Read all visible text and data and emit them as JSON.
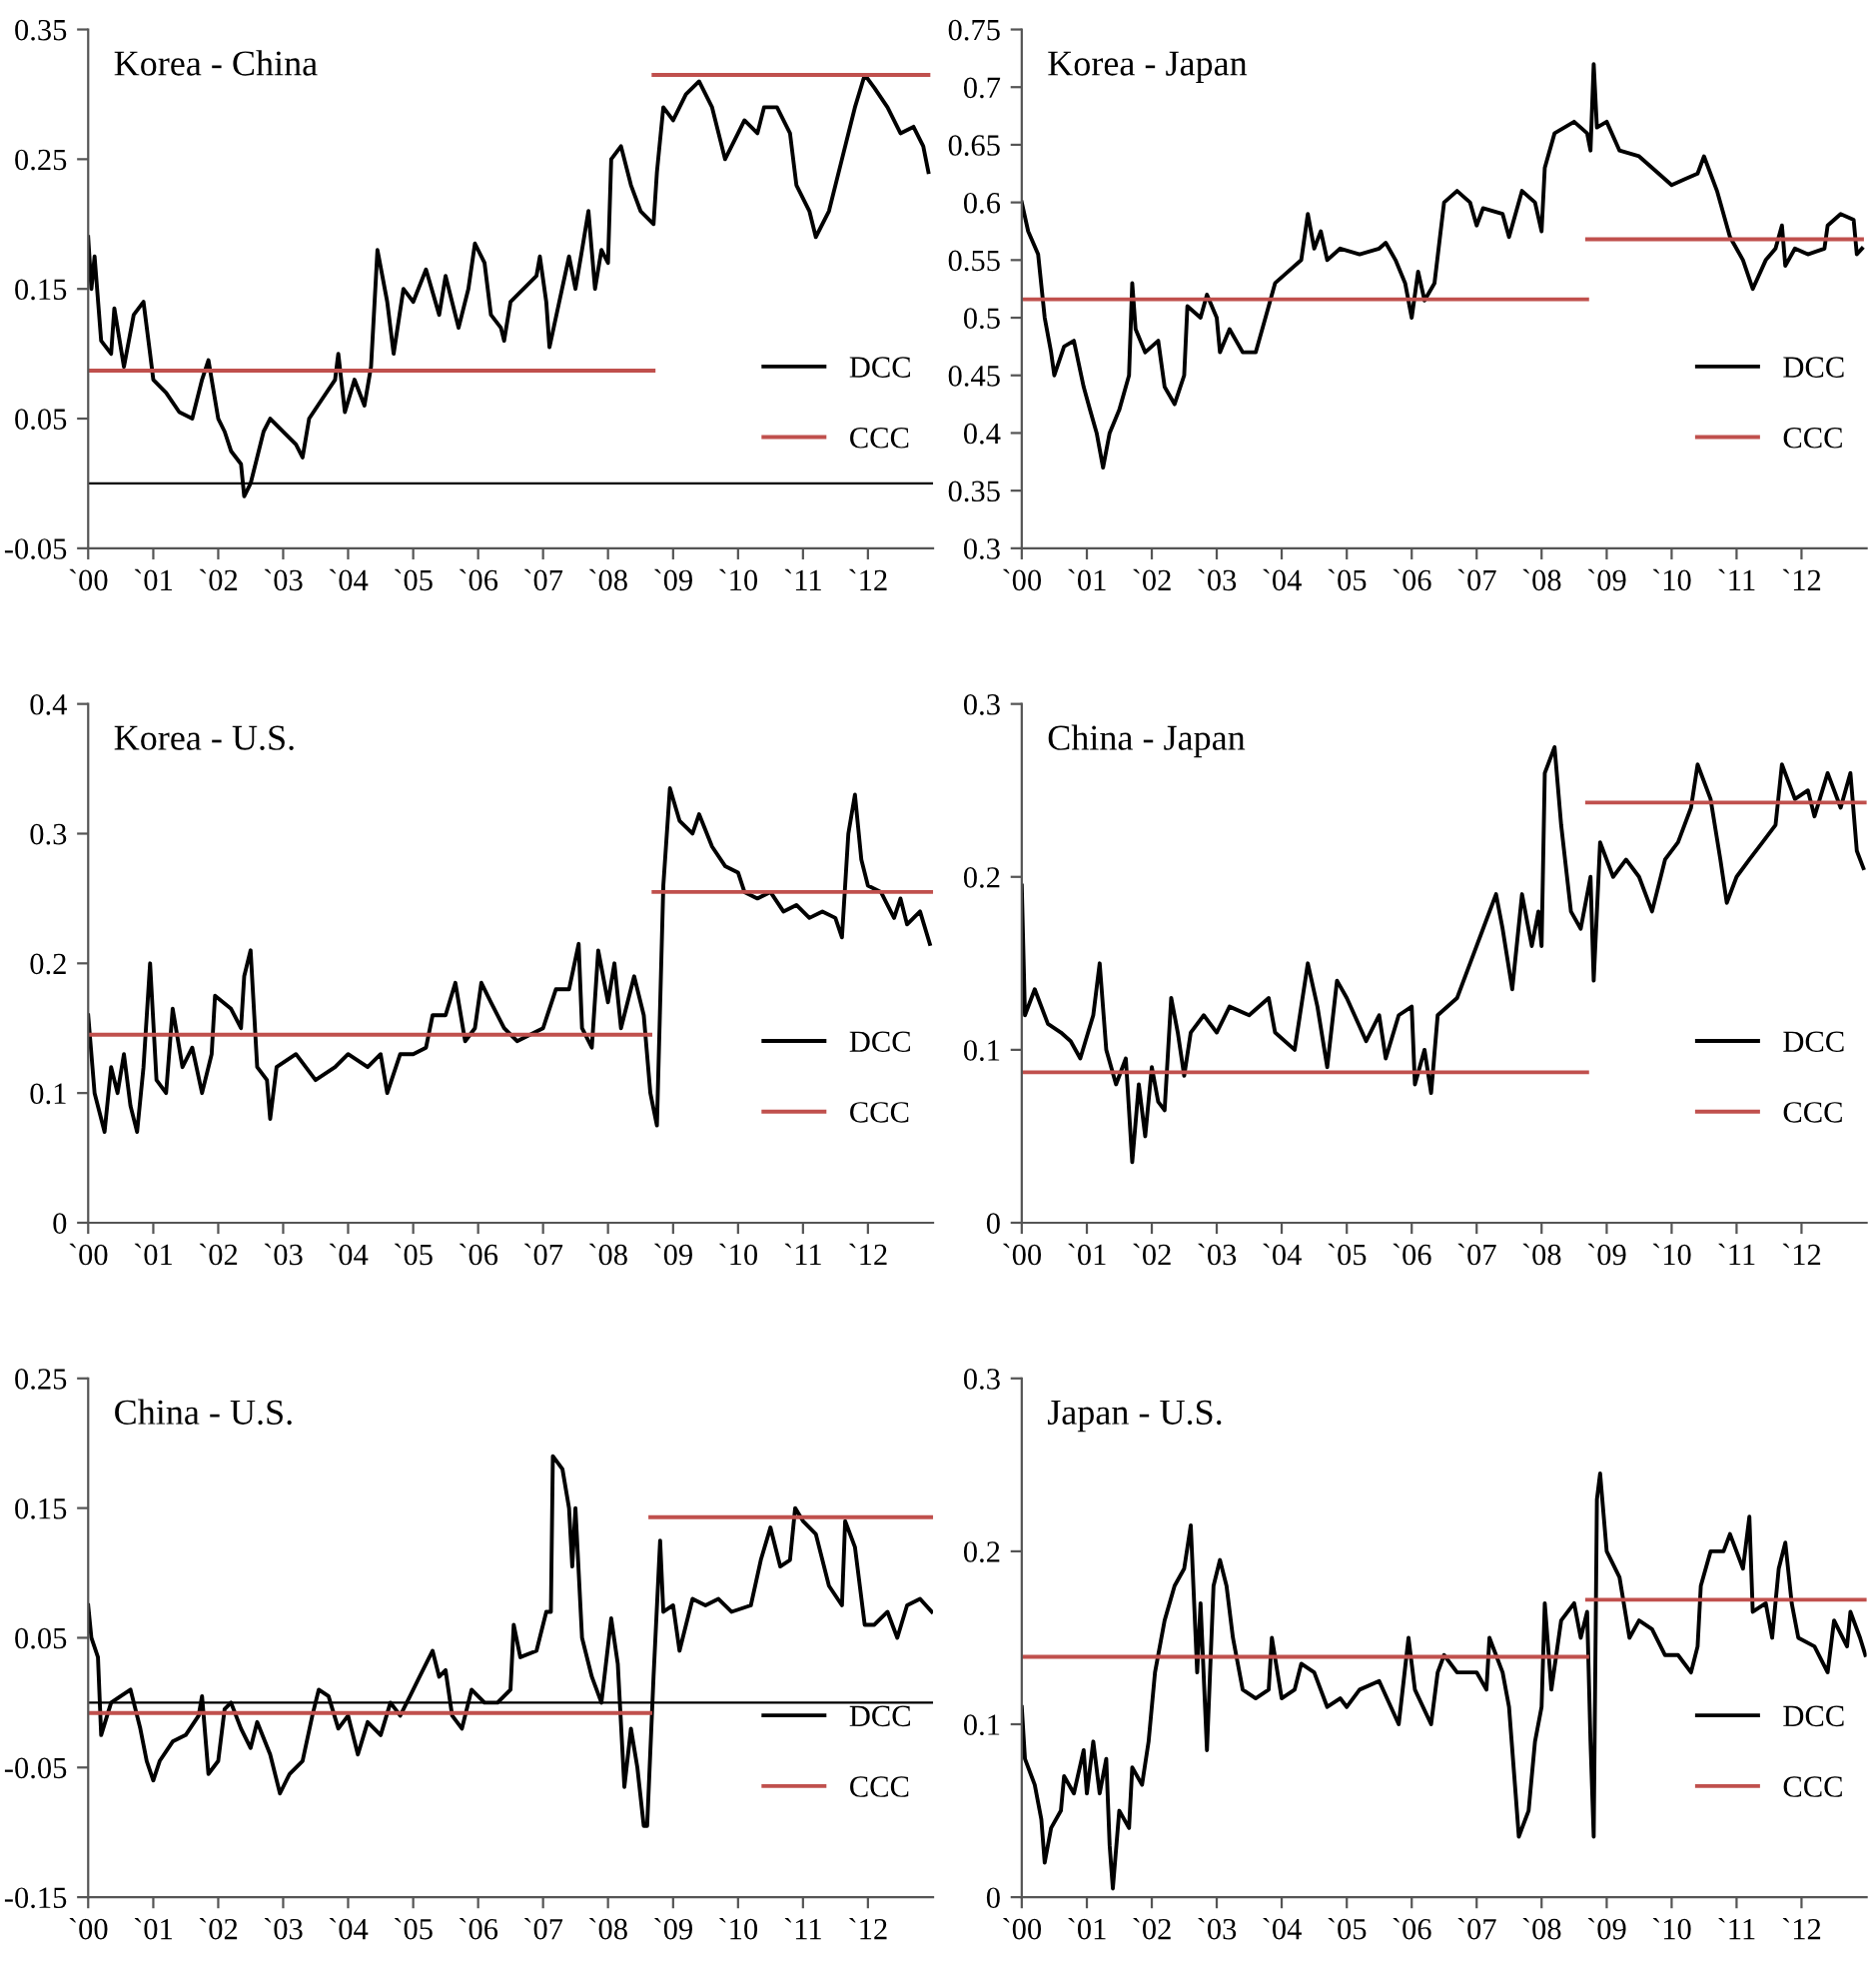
{
  "chart_data": [
    {
      "type": "line",
      "title": "Korea - China",
      "xlim": [
        "2000",
        "2013"
      ],
      "ylim": [
        -0.05,
        0.35
      ],
      "yticks": [
        -0.05,
        0.05,
        0.15,
        0.25,
        0.35
      ],
      "xticks": [
        {
          "value": "2000",
          "label": "`00"
        },
        {
          "value": "2001",
          "label": "`01"
        },
        {
          "value": "2002",
          "label": "`02"
        },
        {
          "value": "2003",
          "label": "`03"
        },
        {
          "value": "2004",
          "label": "`04"
        },
        {
          "value": "2005",
          "label": "`05"
        },
        {
          "value": "2006",
          "label": "`06"
        },
        {
          "value": "2007",
          "label": "`07"
        },
        {
          "value": "2008",
          "label": "`08"
        },
        {
          "value": "2009",
          "label": "`09"
        },
        {
          "value": "2010",
          "label": "`10"
        },
        {
          "value": "2011",
          "label": "`11"
        },
        {
          "value": "2012",
          "label": "`12"
        }
      ],
      "legend": "bottom right",
      "ref_lines": [
        {
          "axis": "y",
          "value": 0,
          "color": "#000000"
        }
      ],
      "series": [
        {
          "name": "DCC",
          "color": "#000000",
          "x": [
            "2000-01-01",
            "2000-01-19",
            "2000-02-06",
            "2000-03-14",
            "2000-05-09",
            "2000-05-27",
            "2000-07-20",
            "2000-09-13",
            "2000-11-07",
            "2000-12-14",
            "2001-01-01",
            "2001-03-14",
            "2001-05-27",
            "2001-08-08",
            "2001-10-02",
            "2001-11-07",
            "2002-01-01",
            "2002-02-06",
            "2002-03-14",
            "2002-05-09",
            "2002-05-27",
            "2002-07-02",
            "2002-09-13",
            "2002-10-20",
            "2003-01-01",
            "2003-03-14",
            "2003-04-20",
            "2003-05-27",
            "2003-08-08",
            "2003-10-20",
            "2003-11-07",
            "2003-12-14",
            "2004-02-06",
            "2004-04-02",
            "2004-05-09",
            "2004-06-14",
            "2004-08-08",
            "2004-09-13",
            "2004-11-07",
            "2005-01-01",
            "2005-03-14",
            "2005-05-27",
            "2005-07-02",
            "2005-09-13",
            "2005-11-07",
            "2005-12-14",
            "2006-02-06",
            "2006-03-14",
            "2006-05-09",
            "2006-05-27",
            "2006-07-02",
            "2006-09-13",
            "2006-11-25",
            "2006-12-14",
            "2007-01-19",
            "2007-02-06",
            "2007-04-02",
            "2007-05-27",
            "2007-07-02",
            "2007-08-08",
            "2007-09-13",
            "2007-10-20",
            "2007-11-25",
            "2008-01-01",
            "2008-01-19",
            "2008-03-14",
            "2008-05-09",
            "2008-07-02",
            "2008-09-13",
            "2008-10-02",
            "2008-11-07",
            "2009-01-01",
            "2009-03-14",
            "2009-05-27",
            "2009-08-08",
            "2009-10-20",
            "2010-01-01",
            "2010-02-06",
            "2010-04-20",
            "2010-05-27",
            "2010-08-08",
            "2010-10-20",
            "2010-11-25",
            "2011-02-06",
            "2011-03-14",
            "2011-05-27",
            "2011-08-08",
            "2011-10-20",
            "2011-12-14",
            "2012-02-06",
            "2012-04-20",
            "2012-07-02",
            "2012-09-13",
            "2012-11-07",
            "2012-12-06"
          ],
          "values": [
            0.19,
            0.15,
            0.175,
            0.11,
            0.1,
            0.135,
            0.09,
            0.13,
            0.14,
            0.1,
            0.08,
            0.07,
            0.055,
            0.05,
            0.08,
            0.095,
            0.05,
            0.04,
            0.025,
            0.015,
            -0.01,
            0.0,
            0.04,
            0.05,
            0.04,
            0.03,
            0.02,
            0.05,
            0.065,
            0.08,
            0.1,
            0.055,
            0.08,
            0.06,
            0.09,
            0.18,
            0.14,
            0.1,
            0.15,
            0.14,
            0.165,
            0.13,
            0.16,
            0.12,
            0.15,
            0.185,
            0.17,
            0.13,
            0.12,
            0.11,
            0.14,
            0.15,
            0.16,
            0.175,
            0.14,
            0.105,
            0.14,
            0.175,
            0.15,
            0.18,
            0.21,
            0.15,
            0.18,
            0.17,
            0.25,
            0.26,
            0.23,
            0.21,
            0.2,
            0.24,
            0.29,
            0.28,
            0.3,
            0.31,
            0.29,
            0.25,
            0.27,
            0.28,
            0.27,
            0.29,
            0.29,
            0.27,
            0.23,
            0.21,
            0.19,
            0.21,
            0.25,
            0.29,
            0.315,
            0.305,
            0.29,
            0.27,
            0.275,
            0.26,
            0.24
          ]
        },
        {
          "name": "CCC",
          "color": "#c0504d",
          "x": [
            "2000-01-01",
            "2008-09-13"
          ],
          "values": [
            0.087,
            0.087
          ]
        },
        {
          "color": "#c0504d",
          "x": [
            "2008-09-13",
            "2012-12-06"
          ],
          "values": [
            0.315,
            0.315
          ]
        }
      ]
    },
    {
      "type": "line",
      "title": "Korea - Japan",
      "xlim": [
        "2000",
        "2013"
      ],
      "ylim": [
        0.3,
        0.75
      ],
      "yticks": [
        0.3,
        0.35,
        0.4,
        0.45,
        0.5,
        0.55,
        0.6,
        0.65,
        0.7,
        0.75
      ],
      "xticks": [
        {
          "value": "2000",
          "label": "`00"
        },
        {
          "value": "2001",
          "label": "`01"
        },
        {
          "value": "2002",
          "label": "`02"
        },
        {
          "value": "2003",
          "label": "`03"
        },
        {
          "value": "2004",
          "label": "`04"
        },
        {
          "value": "2005",
          "label": "`05"
        },
        {
          "value": "2006",
          "label": "`06"
        },
        {
          "value": "2007",
          "label": "`07"
        },
        {
          "value": "2008",
          "label": "`08"
        },
        {
          "value": "2009",
          "label": "`09"
        },
        {
          "value": "2010",
          "label": "`10"
        },
        {
          "value": "2011",
          "label": "`11"
        },
        {
          "value": "2012",
          "label": "`12"
        }
      ],
      "legend": "bottom right",
      "series": [
        {
          "name": "DCC",
          "color": "#000000",
          "x": [
            "2000-01-01",
            "2000-02-06",
            "2000-04-02",
            "2000-05-09",
            "2000-06-14",
            "2000-07-02",
            "2000-08-26",
            "2000-10-20",
            "2000-12-14",
            "2001-01-19",
            "2001-02-25",
            "2001-04-02",
            "2001-05-09",
            "2001-07-02",
            "2001-08-26",
            "2001-09-13",
            "2001-10-02",
            "2001-11-25",
            "2002-02-06",
            "2002-03-14",
            "2002-05-09",
            "2002-07-02",
            "2002-07-20",
            "2002-10-02",
            "2002-11-07",
            "2003-01-01",
            "2003-01-19",
            "2003-03-14",
            "2003-05-27",
            "2003-08-08",
            "2003-10-02",
            "2003-11-25",
            "2004-02-06",
            "2004-04-20",
            "2004-05-27",
            "2004-07-02",
            "2004-08-08",
            "2004-09-13",
            "2004-11-25",
            "2005-03-14",
            "2005-07-02",
            "2005-08-08",
            "2005-10-02",
            "2005-11-25",
            "2006-01-01",
            "2006-02-06",
            "2006-03-14",
            "2006-05-09",
            "2006-07-02",
            "2006-09-13",
            "2006-11-25",
            "2007-01-01",
            "2007-02-06",
            "2007-05-27",
            "2007-07-02",
            "2007-09-13",
            "2007-11-25",
            "2008-01-01",
            "2008-01-19",
            "2008-03-14",
            "2008-07-02",
            "2008-09-13",
            "2008-10-02",
            "2008-10-20",
            "2008-11-07",
            "2009-01-01",
            "2009-03-14",
            "2009-07-02",
            "2009-10-20",
            "2010-01-01",
            "2010-03-14",
            "2010-05-27",
            "2010-07-02",
            "2010-09-13",
            "2010-11-25",
            "2011-02-06",
            "2011-04-02",
            "2011-06-14",
            "2011-08-08",
            "2011-09-13",
            "2011-10-02",
            "2011-11-25",
            "2012-02-06",
            "2012-05-09",
            "2012-05-27",
            "2012-08-08",
            "2012-10-20",
            "2012-11-07",
            "2012-12-06"
          ],
          "values": [
            0.6,
            0.575,
            0.555,
            0.5,
            0.47,
            0.45,
            0.475,
            0.48,
            0.44,
            0.42,
            0.4,
            0.37,
            0.4,
            0.42,
            0.45,
            0.53,
            0.49,
            0.47,
            0.48,
            0.44,
            0.425,
            0.45,
            0.51,
            0.5,
            0.52,
            0.5,
            0.47,
            0.49,
            0.47,
            0.47,
            0.5,
            0.53,
            0.54,
            0.55,
            0.59,
            0.56,
            0.575,
            0.55,
            0.56,
            0.555,
            0.56,
            0.565,
            0.55,
            0.53,
            0.5,
            0.54,
            0.515,
            0.53,
            0.6,
            0.61,
            0.6,
            0.58,
            0.595,
            0.59,
            0.57,
            0.61,
            0.6,
            0.575,
            0.63,
            0.66,
            0.67,
            0.66,
            0.645,
            0.72,
            0.665,
            0.67,
            0.645,
            0.64,
            0.625,
            0.615,
            0.62,
            0.625,
            0.64,
            0.61,
            0.57,
            0.55,
            0.525,
            0.55,
            0.56,
            0.58,
            0.545,
            0.56,
            0.555,
            0.56,
            0.58,
            0.59,
            0.585,
            0.555,
            0.56
          ]
        },
        {
          "name": "CCC",
          "color": "#c0504d",
          "x": [
            "2000-01-01",
            "2008-09-13"
          ],
          "values": [
            0.516,
            0.516
          ]
        },
        {
          "color": "#c0504d",
          "x": [
            "2008-09-13",
            "2012-12-06"
          ],
          "values": [
            0.568,
            0.568
          ]
        }
      ]
    },
    {
      "type": "line",
      "title": "Korea - U.S.",
      "xlim": [
        "2000",
        "2013"
      ],
      "ylim": [
        0,
        0.4
      ],
      "yticks": [
        0,
        0.1,
        0.2,
        0.3,
        0.4
      ],
      "xticks": [
        {
          "value": "2000",
          "label": "`00"
        },
        {
          "value": "2001",
          "label": "`01"
        },
        {
          "value": "2002",
          "label": "`02"
        },
        {
          "value": "2003",
          "label": "`03"
        },
        {
          "value": "2004",
          "label": "`04"
        },
        {
          "value": "2005",
          "label": "`05"
        },
        {
          "value": "2006",
          "label": "`06"
        },
        {
          "value": "2007",
          "label": "`07"
        },
        {
          "value": "2008",
          "label": "`08"
        },
        {
          "value": "2009",
          "label": "`09"
        },
        {
          "value": "2010",
          "label": "`10"
        },
        {
          "value": "2011",
          "label": "`11"
        },
        {
          "value": "2012",
          "label": "`12"
        }
      ],
      "legend": "bottom right",
      "series": [
        {
          "name": "DCC",
          "color": "#000000",
          "x": [
            "2000-01-01",
            "2000-02-06",
            "2000-04-02",
            "2000-05-09",
            "2000-06-14",
            "2000-07-20",
            "2000-08-26",
            "2000-10-02",
            "2000-11-07",
            "2000-12-14",
            "2001-01-19",
            "2001-03-14",
            "2001-04-20",
            "2001-06-14",
            "2001-08-08",
            "2001-10-02",
            "2001-11-25",
            "2001-12-14",
            "2002-03-14",
            "2002-05-09",
            "2002-05-27",
            "2002-07-02",
            "2002-08-08",
            "2002-10-02",
            "2002-10-20",
            "2002-11-25",
            "2003-03-14",
            "2003-07-02",
            "2003-10-20",
            "2004-01-01",
            "2004-04-20",
            "2004-07-02",
            "2004-08-08",
            "2004-10-20",
            "2005-01-01",
            "2005-03-14",
            "2005-04-20",
            "2005-07-02",
            "2005-08-26",
            "2005-10-20",
            "2005-12-14",
            "2006-01-19",
            "2006-03-14",
            "2006-05-27",
            "2006-08-08",
            "2006-10-20",
            "2007-01-01",
            "2007-03-14",
            "2007-05-27",
            "2007-07-20",
            "2007-08-08",
            "2007-10-02",
            "2007-11-07",
            "2008-01-01",
            "2008-02-06",
            "2008-03-14",
            "2008-05-27",
            "2008-07-20",
            "2008-08-26",
            "2008-10-02",
            "2008-11-07",
            "2008-12-14",
            "2009-02-06",
            "2009-04-20",
            "2009-05-27",
            "2009-08-08",
            "2009-10-20",
            "2010-01-01",
            "2010-02-06",
            "2010-04-20",
            "2010-07-02",
            "2010-09-13",
            "2010-11-25",
            "2011-02-06",
            "2011-04-20",
            "2011-07-02",
            "2011-08-08",
            "2011-09-13",
            "2011-10-20",
            "2011-11-25",
            "2012-01-01",
            "2012-03-14",
            "2012-05-27",
            "2012-07-02",
            "2012-08-08",
            "2012-10-20",
            "2012-12-14"
          ],
          "values": [
            0.16,
            0.1,
            0.07,
            0.12,
            0.1,
            0.13,
            0.09,
            0.07,
            0.12,
            0.2,
            0.11,
            0.1,
            0.165,
            0.12,
            0.135,
            0.1,
            0.13,
            0.175,
            0.165,
            0.15,
            0.19,
            0.21,
            0.12,
            0.11,
            0.08,
            0.12,
            0.13,
            0.11,
            0.12,
            0.13,
            0.12,
            0.13,
            0.1,
            0.13,
            0.13,
            0.135,
            0.16,
            0.16,
            0.185,
            0.14,
            0.15,
            0.185,
            0.17,
            0.15,
            0.14,
            0.145,
            0.15,
            0.18,
            0.18,
            0.215,
            0.15,
            0.135,
            0.21,
            0.17,
            0.2,
            0.15,
            0.19,
            0.16,
            0.1,
            0.075,
            0.26,
            0.335,
            0.31,
            0.3,
            0.315,
            0.29,
            0.275,
            0.27,
            0.255,
            0.25,
            0.255,
            0.24,
            0.245,
            0.235,
            0.24,
            0.235,
            0.22,
            0.3,
            0.33,
            0.28,
            0.26,
            0.255,
            0.235,
            0.25,
            0.23,
            0.24,
            0.215
          ]
        },
        {
          "name": "CCC",
          "color": "#c0504d",
          "x": [
            "2000-01-01",
            "2008-08-26"
          ],
          "values": [
            0.145,
            0.145
          ]
        },
        {
          "color": "#c0504d",
          "x": [
            "2008-09-13",
            "2013-01-01"
          ],
          "values": [
            0.255,
            0.255
          ]
        }
      ]
    },
    {
      "type": "line",
      "title": "China - Japan",
      "xlim": [
        "2000",
        "2013"
      ],
      "ylim": [
        0,
        0.3
      ],
      "yticks": [
        0,
        0.1,
        0.2,
        0.3
      ],
      "xticks": [
        {
          "value": "2000",
          "label": "`00"
        },
        {
          "value": "2001",
          "label": "`01"
        },
        {
          "value": "2002",
          "label": "`02"
        },
        {
          "value": "2003",
          "label": "`03"
        },
        {
          "value": "2004",
          "label": "`04"
        },
        {
          "value": "2005",
          "label": "`05"
        },
        {
          "value": "2006",
          "label": "`06"
        },
        {
          "value": "2007",
          "label": "`07"
        },
        {
          "value": "2008",
          "label": "`08"
        },
        {
          "value": "2009",
          "label": "`09"
        },
        {
          "value": "2010",
          "label": "`10"
        },
        {
          "value": "2011",
          "label": "`11"
        },
        {
          "value": "2012",
          "label": "`12"
        }
      ],
      "legend": "bottom right",
      "series": [
        {
          "name": "DCC",
          "color": "#000000",
          "x": [
            "2000-01-01",
            "2000-01-19",
            "2000-03-14",
            "2000-05-27",
            "2000-08-08",
            "2000-10-02",
            "2000-11-25",
            "2001-02-06",
            "2001-03-14",
            "2001-04-20",
            "2001-06-14",
            "2001-08-08",
            "2001-09-13",
            "2001-10-20",
            "2001-11-25",
            "2002-01-01",
            "2002-02-06",
            "2002-03-14",
            "2002-04-20",
            "2002-05-27",
            "2002-07-02",
            "2002-08-08",
            "2002-10-20",
            "2003-01-01",
            "2003-03-14",
            "2003-07-02",
            "2003-10-20",
            "2003-11-25",
            "2004-03-14",
            "2004-05-27",
            "2004-07-20",
            "2004-09-13",
            "2004-11-07",
            "2005-01-01",
            "2005-04-20",
            "2005-07-02",
            "2005-08-08",
            "2005-10-20",
            "2006-01-01",
            "2006-01-19",
            "2006-03-14",
            "2006-04-20",
            "2006-05-27",
            "2006-09-13",
            "2006-11-25",
            "2007-02-06",
            "2007-04-20",
            "2007-05-27",
            "2007-07-20",
            "2007-09-13",
            "2007-11-07",
            "2007-12-14",
            "2008-01-01",
            "2008-01-19",
            "2008-03-14",
            "2008-04-20",
            "2008-06-14",
            "2008-08-08",
            "2008-10-02",
            "2008-10-20",
            "2008-11-25",
            "2009-02-06",
            "2009-04-20",
            "2009-07-02",
            "2009-09-13",
            "2009-11-25",
            "2010-02-06",
            "2010-04-20",
            "2010-05-27",
            "2010-08-08",
            "2010-10-02",
            "2010-11-07",
            "2011-01-01",
            "2011-03-14",
            "2011-05-27",
            "2011-08-08",
            "2011-09-13",
            "2011-11-25",
            "2012-02-06",
            "2012-03-14",
            "2012-05-27",
            "2012-08-08",
            "2012-10-02",
            "2012-11-07",
            "2012-12-14"
          ],
          "values": [
            0.195,
            0.12,
            0.135,
            0.115,
            0.11,
            0.105,
            0.095,
            0.12,
            0.15,
            0.1,
            0.08,
            0.095,
            0.035,
            0.08,
            0.05,
            0.09,
            0.07,
            0.065,
            0.13,
            0.11,
            0.085,
            0.11,
            0.12,
            0.11,
            0.125,
            0.12,
            0.13,
            0.11,
            0.1,
            0.15,
            0.125,
            0.09,
            0.14,
            0.13,
            0.105,
            0.12,
            0.095,
            0.12,
            0.125,
            0.08,
            0.1,
            0.075,
            0.12,
            0.13,
            0.15,
            0.17,
            0.19,
            0.17,
            0.135,
            0.19,
            0.16,
            0.18,
            0.16,
            0.26,
            0.275,
            0.23,
            0.18,
            0.17,
            0.2,
            0.14,
            0.22,
            0.2,
            0.21,
            0.2,
            0.18,
            0.21,
            0.22,
            0.24,
            0.265,
            0.245,
            0.21,
            0.185,
            0.2,
            0.21,
            0.22,
            0.23,
            0.265,
            0.245,
            0.25,
            0.235,
            0.26,
            0.24,
            0.26,
            0.215,
            0.205
          ]
        },
        {
          "name": "CCC",
          "color": "#c0504d",
          "x": [
            "2000-01-01",
            "2008-09-13"
          ],
          "values": [
            0.087,
            0.087
          ]
        },
        {
          "color": "#c0504d",
          "x": [
            "2008-09-13",
            "2013-01-01"
          ],
          "values": [
            0.243,
            0.243
          ]
        }
      ]
    },
    {
      "type": "line",
      "title": "China - U.S.",
      "xlim": [
        "2000",
        "2013"
      ],
      "ylim": [
        -0.15,
        0.25
      ],
      "yticks": [
        -0.15,
        -0.05,
        0.05,
        0.15,
        0.25
      ],
      "xticks": [
        {
          "value": "2000",
          "label": "`00"
        },
        {
          "value": "2001",
          "label": "`01"
        },
        {
          "value": "2002",
          "label": "`02"
        },
        {
          "value": "2003",
          "label": "`03"
        },
        {
          "value": "2004",
          "label": "`04"
        },
        {
          "value": "2005",
          "label": "`05"
        },
        {
          "value": "2006",
          "label": "`06"
        },
        {
          "value": "2007",
          "label": "`07"
        },
        {
          "value": "2008",
          "label": "`08"
        },
        {
          "value": "2009",
          "label": "`09"
        },
        {
          "value": "2010",
          "label": "`10"
        },
        {
          "value": "2011",
          "label": "`11"
        },
        {
          "value": "2012",
          "label": "`12"
        }
      ],
      "legend": "bottom right",
      "ref_lines": [
        {
          "axis": "y",
          "value": 0,
          "color": "#000000"
        }
      ],
      "series": [
        {
          "name": "DCC",
          "color": "#000000",
          "x": [
            "2000-01-01",
            "2000-01-19",
            "2000-02-25",
            "2000-03-14",
            "2000-05-09",
            "2000-07-02",
            "2000-08-26",
            "2000-10-20",
            "2000-11-25",
            "2001-01-01",
            "2001-02-06",
            "2001-04-20",
            "2001-07-02",
            "2001-09-13",
            "2001-10-02",
            "2001-11-07",
            "2002-01-01",
            "2002-02-06",
            "2002-03-14",
            "2002-05-09",
            "2002-07-02",
            "2002-08-08",
            "2002-10-20",
            "2002-12-14",
            "2003-02-06",
            "2003-04-20",
            "2003-06-14",
            "2003-07-20",
            "2003-09-13",
            "2003-11-07",
            "2004-01-01",
            "2004-02-25",
            "2004-04-20",
            "2004-07-02",
            "2004-08-26",
            "2004-10-20",
            "2004-12-14",
            "2005-02-06",
            "2005-04-20",
            "2005-05-27",
            "2005-07-02",
            "2005-08-08",
            "2005-10-02",
            "2005-11-25",
            "2006-02-06",
            "2006-04-20",
            "2006-07-02",
            "2006-07-20",
            "2006-08-26",
            "2006-11-25",
            "2007-01-19",
            "2007-02-14",
            "2007-02-25",
            "2007-04-20",
            "2007-05-27",
            "2007-06-14",
            "2007-07-02",
            "2007-08-08",
            "2007-10-02",
            "2007-11-25",
            "2008-01-19",
            "2008-02-25",
            "2008-04-02",
            "2008-05-09",
            "2008-06-14",
            "2008-07-20",
            "2008-08-08",
            "2008-09-13",
            "2008-10-20",
            "2008-11-07",
            "2009-01-01",
            "2009-02-06",
            "2009-04-20",
            "2009-07-02",
            "2009-09-13",
            "2009-11-25",
            "2010-03-14",
            "2010-05-09",
            "2010-07-02",
            "2010-08-26",
            "2010-10-20",
            "2010-11-18",
            "2011-01-01",
            "2011-03-14",
            "2011-05-27",
            "2011-08-08",
            "2011-08-26",
            "2011-10-20",
            "2011-12-14",
            "2012-02-06",
            "2012-04-20",
            "2012-06-14",
            "2012-08-08",
            "2012-10-20",
            "2012-12-25"
          ],
          "values": [
            0.075,
            0.05,
            0.035,
            -0.025,
            0.0,
            0.005,
            0.01,
            -0.02,
            -0.045,
            -0.06,
            -0.045,
            -0.03,
            -0.025,
            -0.01,
            0.005,
            -0.055,
            -0.045,
            -0.005,
            0.0,
            -0.02,
            -0.035,
            -0.015,
            -0.04,
            -0.07,
            -0.055,
            -0.045,
            -0.01,
            0.01,
            0.005,
            -0.02,
            -0.01,
            -0.04,
            -0.015,
            -0.025,
            0.0,
            -0.01,
            0.005,
            0.02,
            0.04,
            0.02,
            0.025,
            -0.01,
            -0.02,
            0.01,
            0.0,
            0.0,
            0.01,
            0.06,
            0.035,
            0.04,
            0.07,
            0.07,
            0.19,
            0.18,
            0.15,
            0.105,
            0.15,
            0.05,
            0.02,
            0.0,
            0.065,
            0.03,
            -0.065,
            -0.02,
            -0.05,
            -0.095,
            -0.095,
            0.02,
            0.125,
            0.07,
            0.075,
            0.04,
            0.08,
            0.075,
            0.08,
            0.07,
            0.075,
            0.11,
            0.135,
            0.105,
            0.11,
            0.15,
            0.14,
            0.13,
            0.09,
            0.075,
            0.14,
            0.12,
            0.06,
            0.06,
            0.07,
            0.05,
            0.075,
            0.08,
            0.07
          ]
        },
        {
          "name": "CCC",
          "color": "#c0504d",
          "x": [
            "2000-01-01",
            "2008-08-26"
          ],
          "values": [
            -0.008,
            -0.008
          ]
        },
        {
          "color": "#c0504d",
          "x": [
            "2008-08-26",
            "2013-01-01"
          ],
          "values": [
            0.143,
            0.143
          ]
        }
      ]
    },
    {
      "type": "line",
      "title": "Japan - U.S.",
      "xlim": [
        "2000",
        "2013"
      ],
      "ylim": [
        0,
        0.3
      ],
      "yticks": [
        0,
        0.1,
        0.2,
        0.3
      ],
      "xticks": [
        {
          "value": "2000",
          "label": "`00"
        },
        {
          "value": "2001",
          "label": "`01"
        },
        {
          "value": "2002",
          "label": "`02"
        },
        {
          "value": "2003",
          "label": "`03"
        },
        {
          "value": "2004",
          "label": "`04"
        },
        {
          "value": "2005",
          "label": "`05"
        },
        {
          "value": "2006",
          "label": "`06"
        },
        {
          "value": "2007",
          "label": "`07"
        },
        {
          "value": "2008",
          "label": "`08"
        },
        {
          "value": "2009",
          "label": "`09"
        },
        {
          "value": "2010",
          "label": "`10"
        },
        {
          "value": "2011",
          "label": "`11"
        },
        {
          "value": "2012",
          "label": "`12"
        }
      ],
      "legend": "bottom right",
      "series": [
        {
          "name": "DCC",
          "color": "#000000",
          "x": [
            "2000-01-01",
            "2000-01-19",
            "2000-03-14",
            "2000-04-20",
            "2000-05-09",
            "2000-06-14",
            "2000-08-08",
            "2000-08-26",
            "2000-10-20",
            "2000-12-14",
            "2001-01-01",
            "2001-02-06",
            "2001-03-14",
            "2001-04-20",
            "2001-05-09",
            "2001-05-27",
            "2001-07-02",
            "2001-08-26",
            "2001-09-13",
            "2001-11-07",
            "2001-12-14",
            "2002-01-19",
            "2002-03-14",
            "2002-05-09",
            "2002-07-02",
            "2002-08-08",
            "2002-09-13",
            "2002-10-02",
            "2002-11-07",
            "2002-12-14",
            "2003-01-19",
            "2003-02-25",
            "2003-04-02",
            "2003-05-27",
            "2003-08-08",
            "2003-10-20",
            "2003-11-07",
            "2004-01-01",
            "2004-03-14",
            "2004-04-20",
            "2004-07-02",
            "2004-09-13",
            "2004-11-25",
            "2005-01-01",
            "2005-03-14",
            "2005-07-02",
            "2005-10-20",
            "2005-12-14",
            "2006-01-19",
            "2006-04-20",
            "2006-05-27",
            "2006-07-02",
            "2006-09-13",
            "2007-01-01",
            "2007-02-25",
            "2007-03-14",
            "2007-05-27",
            "2007-07-02",
            "2007-08-08",
            "2007-08-26",
            "2007-10-20",
            "2007-11-25",
            "2008-01-01",
            "2008-01-19",
            "2008-02-25",
            "2008-04-20",
            "2008-07-02",
            "2008-08-08",
            "2008-09-13",
            "2008-10-02",
            "2008-10-20",
            "2008-11-07",
            "2008-11-25",
            "2009-01-01",
            "2009-03-14",
            "2009-05-09",
            "2009-07-02",
            "2009-09-13",
            "2009-11-25",
            "2010-02-06",
            "2010-04-20",
            "2010-05-27",
            "2010-06-14",
            "2010-08-08",
            "2010-10-20",
            "2010-11-25",
            "2011-02-06",
            "2011-03-14",
            "2011-04-02",
            "2011-06-14",
            "2011-07-20",
            "2011-08-26",
            "2011-10-02",
            "2011-11-07",
            "2011-12-14",
            "2012-03-14",
            "2012-05-27",
            "2012-07-02",
            "2012-09-13",
            "2012-10-02",
            "2012-11-25",
            "2012-12-25"
          ],
          "values": [
            0.11,
            0.08,
            0.065,
            0.045,
            0.02,
            0.04,
            0.05,
            0.07,
            0.06,
            0.085,
            0.06,
            0.09,
            0.06,
            0.08,
            0.03,
            0.005,
            0.05,
            0.04,
            0.075,
            0.065,
            0.09,
            0.13,
            0.16,
            0.18,
            0.19,
            0.215,
            0.13,
            0.17,
            0.085,
            0.18,
            0.195,
            0.18,
            0.15,
            0.12,
            0.115,
            0.12,
            0.15,
            0.115,
            0.12,
            0.135,
            0.13,
            0.11,
            0.115,
            0.11,
            0.12,
            0.125,
            0.1,
            0.15,
            0.12,
            0.1,
            0.13,
            0.14,
            0.13,
            0.13,
            0.12,
            0.15,
            0.13,
            0.11,
            0.06,
            0.035,
            0.05,
            0.09,
            0.11,
            0.17,
            0.12,
            0.16,
            0.17,
            0.15,
            0.165,
            0.09,
            0.035,
            0.23,
            0.245,
            0.2,
            0.185,
            0.15,
            0.16,
            0.155,
            0.14,
            0.14,
            0.13,
            0.145,
            0.18,
            0.2,
            0.2,
            0.21,
            0.19,
            0.22,
            0.165,
            0.17,
            0.15,
            0.19,
            0.205,
            0.17,
            0.15,
            0.145,
            0.13,
            0.16,
            0.145,
            0.165,
            0.15,
            0.14
          ]
        },
        {
          "name": "CCC",
          "color": "#c0504d",
          "x": [
            "2000-01-01",
            "2008-09-13"
          ],
          "values": [
            0.139,
            0.139
          ]
        },
        {
          "color": "#c0504d",
          "x": [
            "2008-09-13",
            "2013-01-01"
          ],
          "values": [
            0.172,
            0.172
          ]
        }
      ]
    }
  ]
}
